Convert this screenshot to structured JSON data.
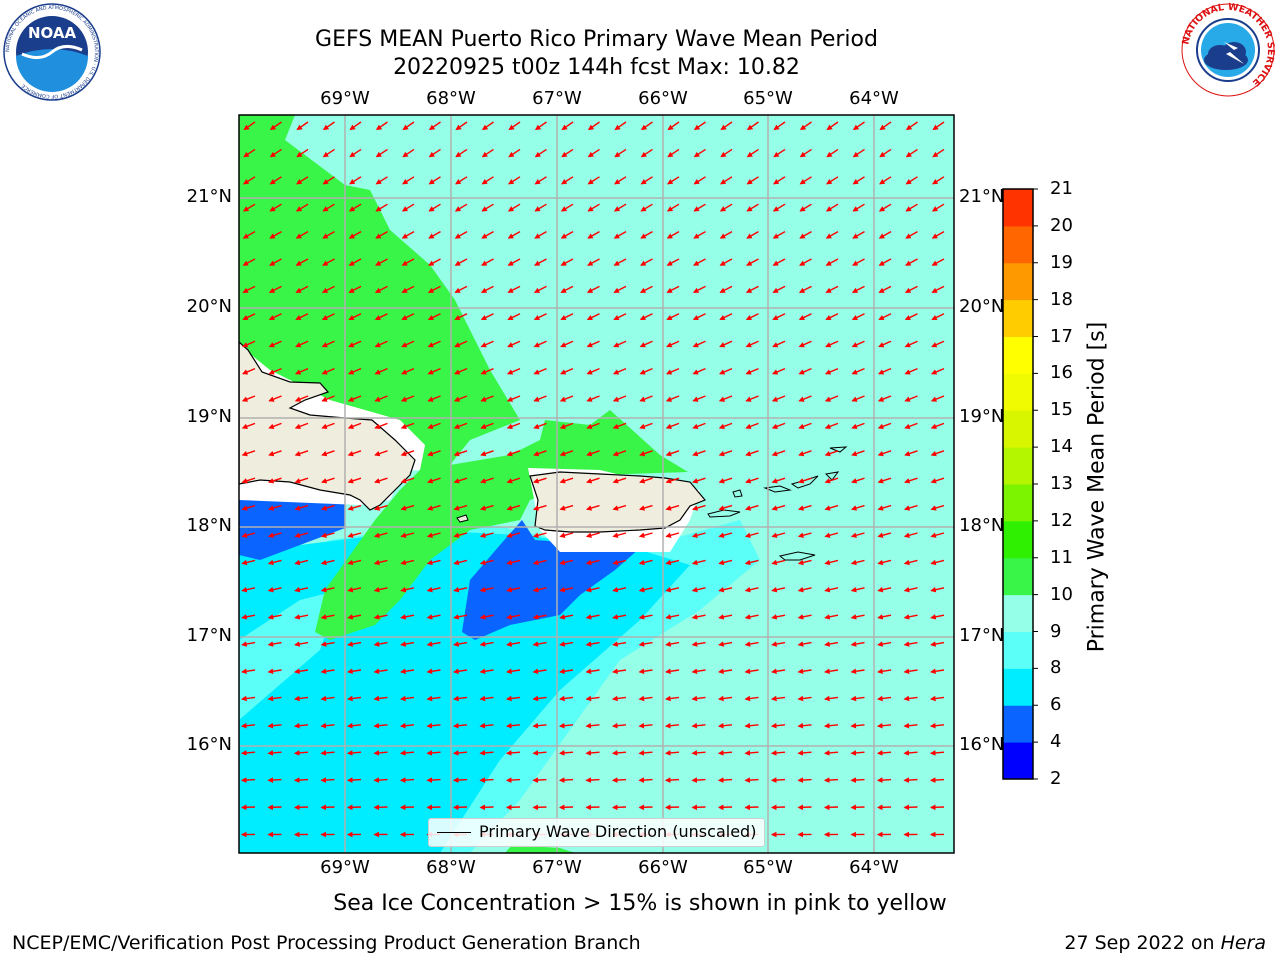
{
  "header": {
    "title_line1": "GEFS MEAN Puerto Rico Primary Wave Mean Period",
    "title_line2": "20220925 t00z 144h fcst   Max: 10.82"
  },
  "axes": {
    "lon_ticks": [
      "69°W",
      "68°W",
      "67°W",
      "66°W",
      "65°W",
      "64°W"
    ],
    "lat_ticks": [
      "21°N",
      "20°N",
      "19°N",
      "18°N",
      "17°N",
      "16°N"
    ]
  },
  "colorbar": {
    "label": "Primary Wave Mean Period [s]",
    "ticks": [
      "2",
      "4",
      "6",
      "8",
      "9",
      "10",
      "11",
      "12",
      "13",
      "14",
      "15",
      "16",
      "17",
      "18",
      "19",
      "20",
      "21"
    ],
    "colors": [
      "#0000ff",
      "#0a64ff",
      "#00ecff",
      "#5cfff8",
      "#96ffe8",
      "#38f548",
      "#2ef000",
      "#7cf400",
      "#b4f500",
      "#d8f600",
      "#f0fa00",
      "#ffff00",
      "#ffcc00",
      "#ff9900",
      "#ff6600",
      "#ff3300",
      "#ff0000"
    ]
  },
  "legend": {
    "label": "Primary Wave Direction (unscaled)"
  },
  "footer": {
    "note": "Sea Ice Concentration > 15% is shown in pink to yellow",
    "left": "NCEP/EMC/Verification Post Processing Product Generation Branch",
    "right_prefix": "27 Sep 2022 on ",
    "right_machine": "Hera"
  },
  "logos": {
    "noaa_text": "NOAA",
    "noaa_ring_text": "NATIONAL OCEANIC AND ATMOSPHERIC ADMINISTRATION · U.S. DEPARTMENT OF COMMERCE",
    "nws_ring_text": "NATIONAL WEATHER SERVICE"
  },
  "colors": {
    "land": "#efedde",
    "arrow": "#ff0000",
    "grid": "#b0b0b0"
  }
}
